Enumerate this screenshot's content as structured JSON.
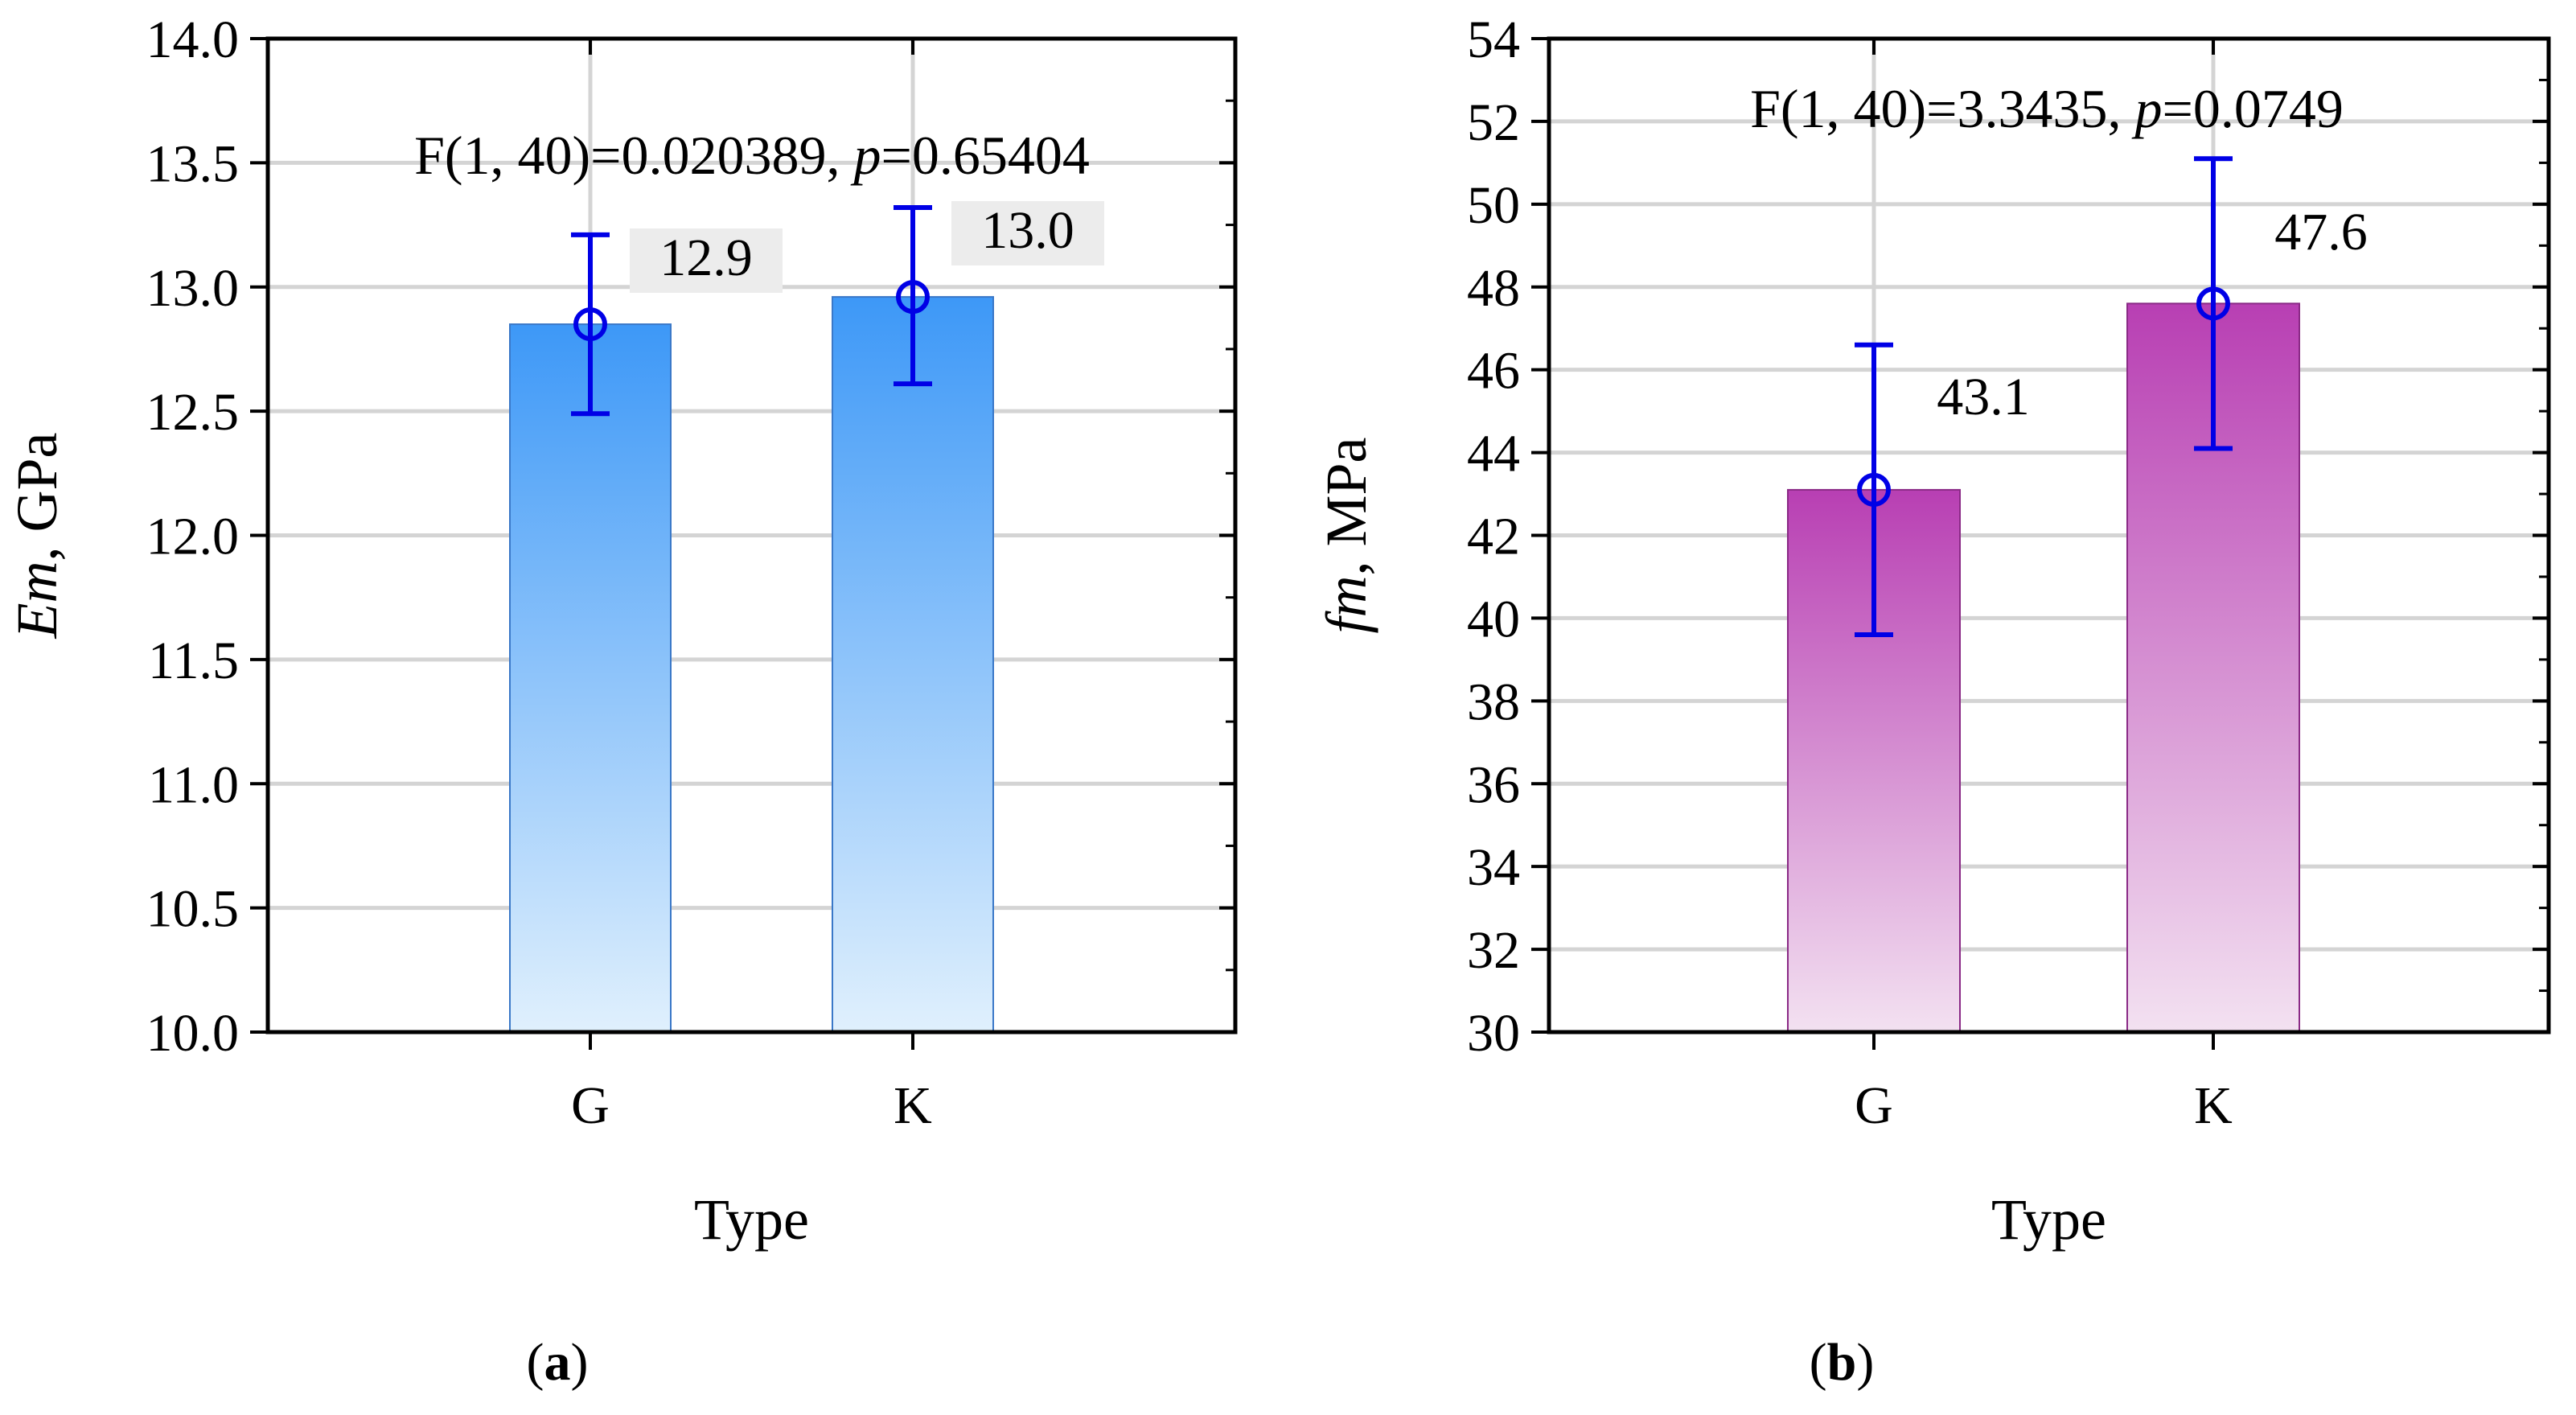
{
  "chart_data": [
    {
      "type": "bar",
      "panel_label": "a",
      "categories": [
        "G",
        "K"
      ],
      "values": [
        12.85,
        12.96
      ],
      "value_labels": [
        "12.9",
        "13.0"
      ],
      "error_low": [
        12.49,
        12.61
      ],
      "error_high": [
        13.21,
        13.32
      ],
      "ylim": [
        10.0,
        14.0
      ],
      "yticks": [
        "10.0",
        "10.5",
        "11.0",
        "11.5",
        "12.0",
        "12.5",
        "13.0",
        "13.5",
        "14.0"
      ],
      "ylabel_italic": "Em",
      "ylabel_rest": ", GPa",
      "xlabel": "Type",
      "stat_prefix": "F(1, 40)=0.020389, ",
      "stat_p": "p",
      "stat_suffix": "=0.65404",
      "grid": true,
      "colors": {
        "bar_top": "#3d98f7",
        "bar_bottom": "#e0f0fd",
        "bar_edge": "#3a78c8",
        "error": "#0000e6"
      }
    },
    {
      "type": "bar",
      "panel_label": "b",
      "categories": [
        "G",
        "K"
      ],
      "values": [
        43.1,
        47.6
      ],
      "value_labels": [
        "43.1",
        "47.6"
      ],
      "error_low": [
        39.6,
        44.1
      ],
      "error_high": [
        46.6,
        51.1
      ],
      "ylim": [
        30,
        54
      ],
      "yticks": [
        "30",
        "32",
        "34",
        "36",
        "38",
        "40",
        "42",
        "44",
        "46",
        "48",
        "50",
        "52",
        "54"
      ],
      "ylabel_italic": "fm",
      "ylabel_rest": ", MPa",
      "xlabel": "Type",
      "stat_prefix": "F(1, 40)=3.3435, ",
      "stat_p": "p",
      "stat_suffix": "=0.0749",
      "grid": true,
      "colors": {
        "bar_top": "#b83fb3",
        "bar_bottom": "#f3e1f1",
        "bar_edge": "#8a2a86",
        "error": "#0000e6"
      }
    }
  ]
}
